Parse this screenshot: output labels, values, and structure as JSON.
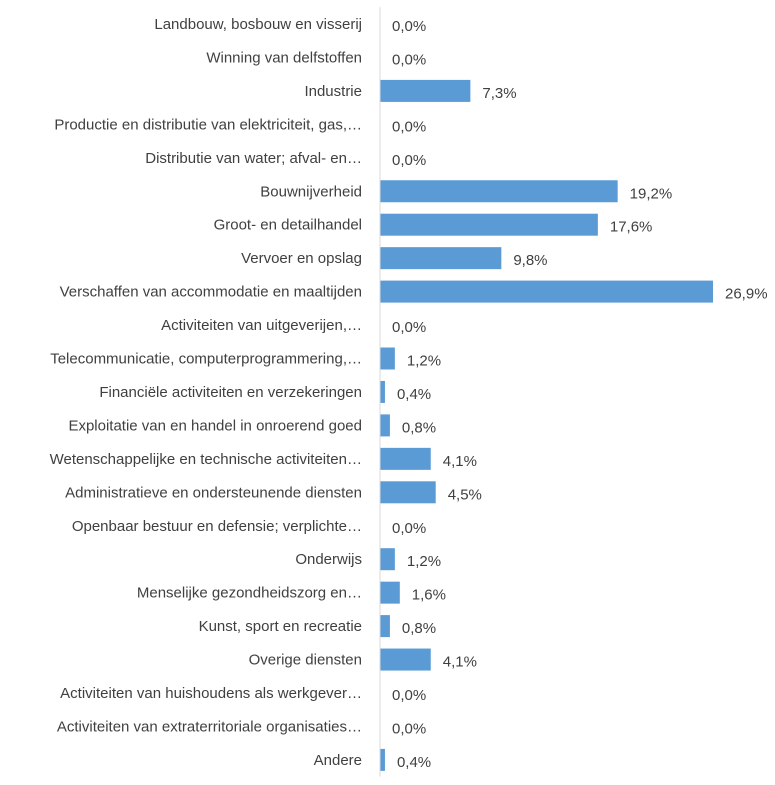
{
  "chart_data": {
    "type": "bar",
    "orientation": "horizontal",
    "categories": [
      "Landbouw, bosbouw en visserij",
      "Winning van delfstoffen",
      "Industrie",
      "Productie en distributie van elektriciteit, gas,…",
      "Distributie van water; afval- en…",
      "Bouwnijverheid",
      "Groot- en detailhandel",
      "Vervoer en opslag",
      "Verschaffen van accommodatie en maaltijden",
      "Activiteiten van uitgeverijen,…",
      "Telecommunicatie, computerprogrammering,…",
      "Financiële activiteiten en verzekeringen",
      "Exploitatie van en handel in onroerend goed",
      "Wetenschappelijke en technische activiteiten…",
      "Administratieve en ondersteunende diensten",
      "Openbaar bestuur en defensie; verplichte…",
      "Onderwijs",
      "Menselijke gezondheidszorg en…",
      "Kunst, sport en recreatie",
      "Overige diensten",
      "Activiteiten van huishoudens als werkgever…",
      "Activiteiten van extraterritoriale organisaties…",
      "Andere"
    ],
    "values": [
      0.0,
      0.0,
      7.3,
      0.0,
      0.0,
      19.2,
      17.6,
      9.8,
      26.9,
      0.0,
      1.2,
      0.4,
      0.8,
      4.1,
      4.5,
      0.0,
      1.2,
      1.6,
      0.8,
      4.1,
      0.0,
      0.0,
      0.4
    ],
    "data_labels": [
      "0,0%",
      "0,0%",
      "7,3%",
      "0,0%",
      "0,0%",
      "19,2%",
      "17,6%",
      "9,8%",
      "26,9%",
      "0,0%",
      "1,2%",
      "0,4%",
      "0,8%",
      "4,1%",
      "4,5%",
      "0,0%",
      "1,2%",
      "1,6%",
      "0,8%",
      "4,1%",
      "0,0%",
      "0,0%",
      "0,4%"
    ],
    "unit": "%",
    "xlim": [
      0,
      26.9
    ],
    "title": "",
    "xlabel": "",
    "ylabel": "",
    "grid": false,
    "legend": "none",
    "colors": {
      "bar": "#5B9BD5",
      "axis": "#D9D9D9",
      "text": "#404040"
    }
  }
}
